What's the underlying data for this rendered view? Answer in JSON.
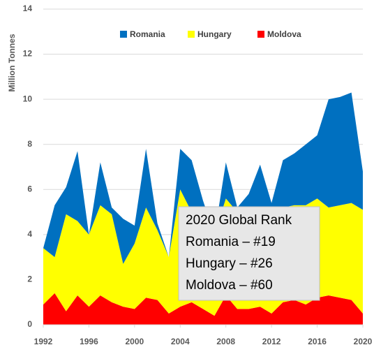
{
  "chart_data": {
    "type": "stacked_area",
    "y_label": "Million Tonnes",
    "x": [
      1992,
      1993,
      1994,
      1995,
      1996,
      1997,
      1998,
      1999,
      2000,
      2001,
      2002,
      2003,
      2004,
      2005,
      2006,
      2007,
      2008,
      2009,
      2010,
      2011,
      2012,
      2013,
      2014,
      2015,
      2016,
      2017,
      2018,
      2019,
      2020
    ],
    "series": [
      {
        "name": "Romania",
        "color": "#0070c0",
        "values": [
          0,
          2.3,
          1.2,
          3.1,
          0,
          1.9,
          0.3,
          2.0,
          0.8,
          2.6,
          0.3,
          0,
          1.8,
          2.3,
          1.1,
          0,
          1.6,
          0.2,
          0.6,
          2.1,
          0.2,
          2.1,
          2.3,
          2.7,
          2.8,
          4.8,
          4.8,
          4.9,
          1.7
        ]
      },
      {
        "name": "Hungary",
        "color": "#ffff00",
        "values": [
          2.5,
          1.6,
          4.3,
          3.3,
          3.2,
          4.0,
          3.9,
          1.9,
          2.9,
          4.0,
          3.1,
          2.5,
          5.2,
          4.0,
          3.7,
          3.6,
          4.3,
          4.3,
          4.5,
          4.2,
          4.7,
          4.2,
          4.2,
          4.4,
          4.4,
          3.9,
          4.1,
          4.3,
          4.6
        ]
      },
      {
        "name": "Moldova",
        "color": "#ff0000",
        "values": [
          0.9,
          1.4,
          0.6,
          1.3,
          0.8,
          1.3,
          1.0,
          0.8,
          0.7,
          1.2,
          1.1,
          0.5,
          0.8,
          1.0,
          0.7,
          0.4,
          1.3,
          0.7,
          0.7,
          0.8,
          0.5,
          1.0,
          1.1,
          0.9,
          1.2,
          1.3,
          1.2,
          1.1,
          0.5
        ]
      }
    ],
    "xlim": [
      1992,
      2020
    ],
    "xticks": [
      1992,
      1996,
      2000,
      2004,
      2008,
      2012,
      2016,
      2020
    ],
    "ylim": [
      0,
      14
    ],
    "yticks": [
      0,
      2,
      4,
      6,
      8,
      10,
      12,
      14
    ],
    "grid": true,
    "legend": "top",
    "annotation": [
      "2020 Global Rank",
      "Romania – #19",
      "Hungary – #26",
      "Moldova – #60"
    ]
  }
}
